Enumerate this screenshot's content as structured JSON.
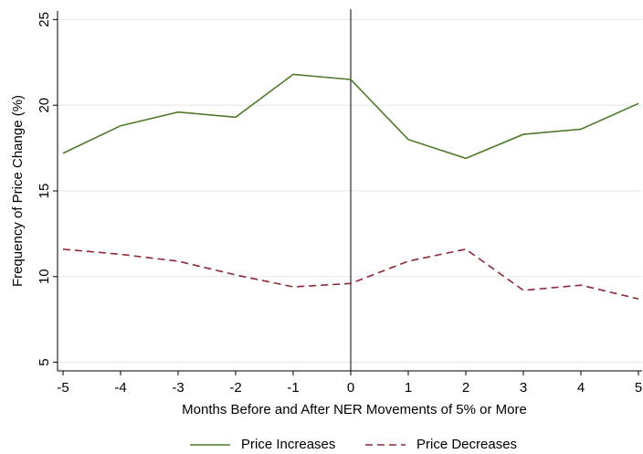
{
  "chart_data": {
    "type": "line",
    "xlabel": "Months Before and After NER Movements of 5% or More",
    "ylabel": "Frequency of Price Change (%)",
    "x": [
      -5,
      -4,
      -3,
      -2,
      -1,
      0,
      1,
      2,
      3,
      4,
      5
    ],
    "series": [
      {
        "name": "Price Increases",
        "color": "#4e7a2c",
        "dash": "none",
        "values": [
          17.2,
          18.8,
          19.6,
          19.3,
          21.8,
          21.5,
          18.0,
          16.9,
          18.3,
          18.6,
          20.1
        ]
      },
      {
        "name": "Price Decreases",
        "color": "#8e2a34",
        "dash": "8 5",
        "values": [
          11.6,
          11.3,
          10.9,
          10.1,
          9.4,
          9.6,
          10.9,
          11.6,
          9.2,
          9.5,
          8.7
        ]
      }
    ],
    "xlim": [
      -5,
      5
    ],
    "xticks": [
      -5,
      -4,
      -3,
      -2,
      -1,
      0,
      1,
      2,
      3,
      4,
      5
    ],
    "ylim": [
      4.5,
      25.5
    ],
    "yticks": [
      5,
      10,
      15,
      20,
      25
    ],
    "vline": 0,
    "grid": true,
    "legend": "bottom"
  }
}
